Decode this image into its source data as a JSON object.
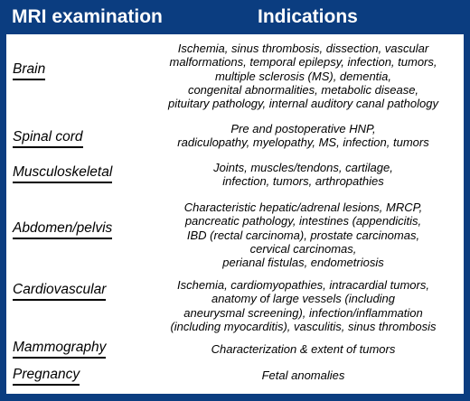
{
  "header": {
    "col1": "MRI examination",
    "col2": "Indications"
  },
  "rows": [
    {
      "exam": "Brain",
      "indications": "Ischemia, sinus thrombosis, dissection, vascular\nmalformations, temporal epilepsy, infection, tumors,\nmultiple sclerosis (MS), dementia,\ncongenital abnormalities, metabolic disease,\npituitary pathology, internal auditory canal pathology"
    },
    {
      "exam": "Spinal cord",
      "indications": "Pre and postoperative HNP,\nradiculopathy, myelopathy, MS, infection, tumors"
    },
    {
      "exam": "Musculoskeletal",
      "indications": "Joints, muscles/tendons, cartilage,\ninfection, tumors, arthropathies"
    },
    {
      "exam": "Abdomen/pelvis",
      "indications": "Characteristic hepatic/adrenal lesions, MRCP,\npancreatic pathology, intestines (appendicitis,\nIBD (rectal carcinoma), prostate carcinomas,\ncervical carcinomas,\nperianal fistulas, endometriosis"
    },
    {
      "exam": "Cardiovascular",
      "indications": "Ischemia, cardiomyopathies, intracardial tumors,\nanatomy of large vessels (including\naneurysmal screening), infection/inflammation\n(including myocarditis), vasculitis, sinus thrombosis"
    },
    {
      "exam": "Mammography",
      "indications": "Characterization & extent of tumors"
    },
    {
      "exam": "Pregnancy",
      "indications": "Fetal anomalies"
    }
  ]
}
